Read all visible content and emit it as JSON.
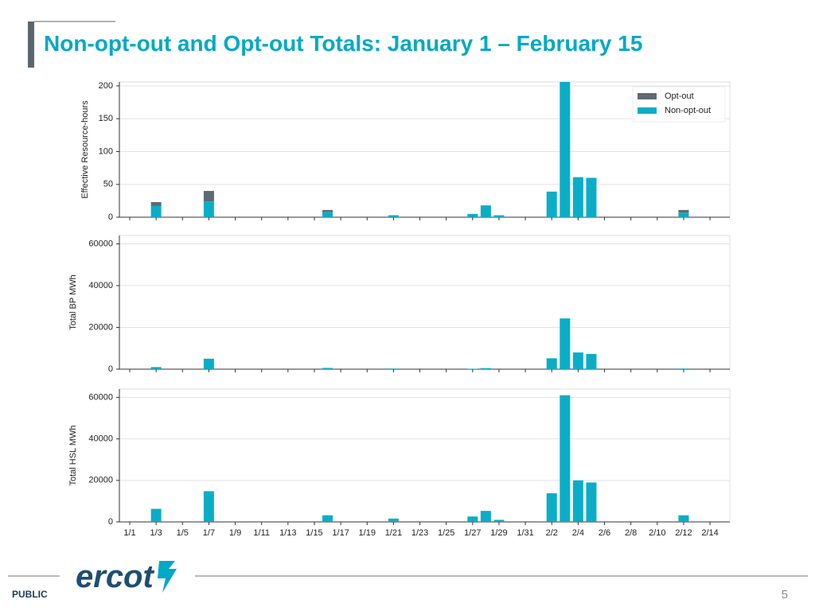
{
  "header": {
    "title": "Non-opt-out and Opt-out Totals: January 1 – February 15"
  },
  "footer": {
    "logo": "ercot",
    "label": "PUBLIC",
    "page": "5"
  },
  "chart_data": [
    {
      "type": "stacked_bar",
      "ylabel": "Effective Resource-hours",
      "ylim": [
        0,
        206
      ],
      "yticks": [
        0,
        50,
        100,
        150,
        200
      ],
      "grid": true,
      "legend": "upper right",
      "series": [
        {
          "name": "Non-opt-out",
          "color": "#0badc6",
          "values": [
            0,
            0,
            17,
            0,
            0,
            0,
            24,
            0,
            0,
            0,
            0,
            0,
            0,
            0,
            0,
            8,
            0,
            0,
            0,
            0,
            3,
            0,
            0,
            0,
            0,
            0,
            5,
            18,
            3,
            0,
            0,
            0,
            39,
            215,
            61,
            60,
            0,
            0,
            0,
            0,
            0,
            0,
            7,
            0,
            0,
            0
          ]
        },
        {
          "name": "Opt-out",
          "color": "#5f6b73",
          "values": [
            0,
            0,
            6,
            0,
            0,
            0,
            16,
            0,
            0,
            0,
            0,
            0,
            0,
            0,
            0,
            3,
            0,
            0,
            0,
            0,
            0,
            0,
            0,
            0,
            0,
            0,
            0,
            0,
            0,
            0,
            0,
            0,
            0,
            0,
            0,
            0,
            0,
            0,
            0,
            0,
            0,
            0,
            4,
            0,
            0,
            0
          ]
        }
      ]
    },
    {
      "type": "bar",
      "ylabel": "Total BP MWh",
      "ylim": [
        0,
        64000
      ],
      "yticks": [
        0,
        20000,
        40000,
        60000
      ],
      "grid": true,
      "color": "#0badc6",
      "values": [
        0,
        0,
        1000,
        0,
        0,
        0,
        5000,
        0,
        0,
        0,
        0,
        0,
        0,
        0,
        0,
        600,
        0,
        0,
        0,
        0,
        300,
        0,
        0,
        0,
        0,
        0,
        200,
        500,
        0,
        0,
        0,
        0,
        5200,
        24300,
        8000,
        7300,
        0,
        0,
        0,
        0,
        0,
        0,
        300,
        0,
        0,
        0
      ]
    },
    {
      "type": "bar",
      "ylabel": "Total HSL MWh",
      "ylim": [
        0,
        64000
      ],
      "yticks": [
        0,
        20000,
        40000,
        60000
      ],
      "grid": true,
      "color": "#0badc6",
      "categories": [
        "1/1",
        null,
        "1/3",
        null,
        "1/5",
        null,
        "1/7",
        null,
        "1/9",
        null,
        "1/11",
        null,
        "1/13",
        null,
        "1/15",
        null,
        "1/17",
        null,
        "1/19",
        null,
        "1/21",
        null,
        "1/23",
        null,
        "1/25",
        null,
        "1/27",
        null,
        "1/29",
        null,
        "1/31",
        null,
        "2/2",
        null,
        "2/4",
        null,
        "2/6",
        null,
        "2/8",
        null,
        "2/10",
        null,
        "2/12",
        null,
        "2/14",
        null
      ],
      "values": [
        0,
        0,
        6300,
        0,
        0,
        0,
        14800,
        0,
        0,
        0,
        0,
        0,
        0,
        0,
        0,
        3200,
        0,
        0,
        0,
        0,
        1600,
        0,
        0,
        0,
        0,
        0,
        2600,
        5300,
        1000,
        0,
        0,
        0,
        13800,
        61000,
        20000,
        19000,
        0,
        0,
        0,
        0,
        0,
        0,
        3200,
        0,
        0,
        0
      ]
    }
  ]
}
